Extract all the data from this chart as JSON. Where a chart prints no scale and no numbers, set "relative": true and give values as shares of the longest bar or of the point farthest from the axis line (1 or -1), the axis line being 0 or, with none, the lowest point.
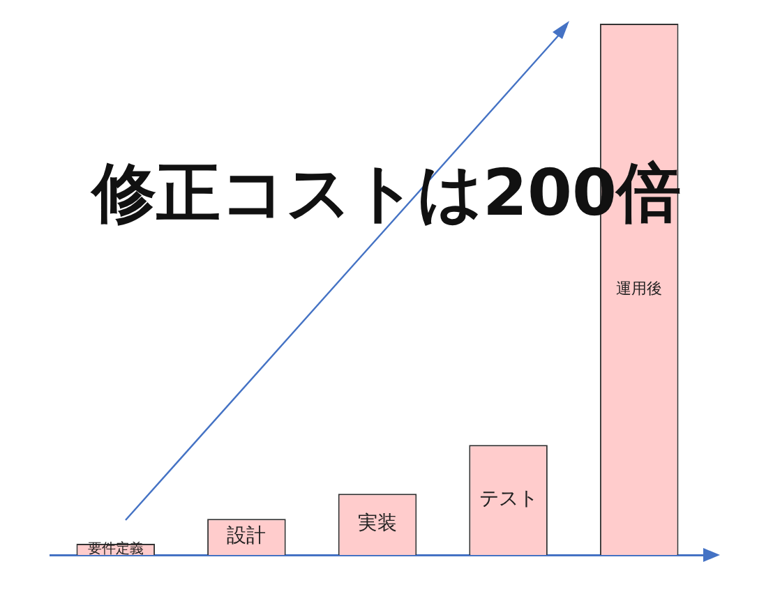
{
  "chart_data": {
    "type": "bar",
    "title": "修正コストは200倍",
    "relative": true,
    "categories": [
      "要件定義",
      "設計",
      "実装",
      "テスト",
      "運用後"
    ],
    "values": [
      0.021,
      0.068,
      0.115,
      0.207,
      1
    ],
    "color": "#ffcccc",
    "grid": false,
    "legend": false
  }
}
